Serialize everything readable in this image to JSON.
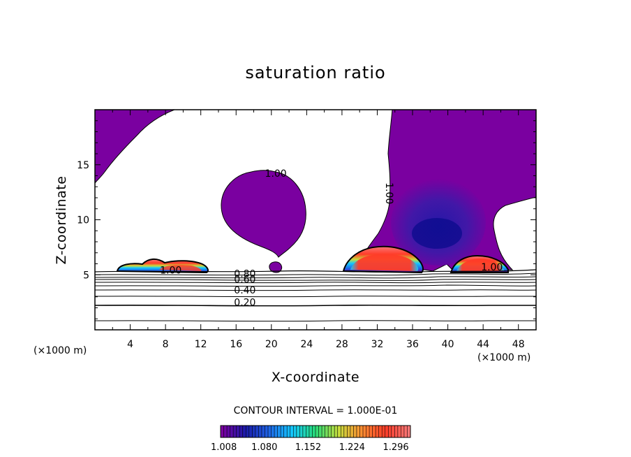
{
  "chart_data": {
    "type": "contour",
    "title": "saturation ratio",
    "xlabel": "X-coordinate",
    "ylabel": "Z-coordinate",
    "x_unit": "(×1000 m)",
    "y_unit": "(×1000 m)",
    "xlim": [
      0,
      50
    ],
    "ylim": [
      0,
      20
    ],
    "x_ticks": [
      4,
      8,
      12,
      16,
      20,
      24,
      28,
      32,
      36,
      40,
      44,
      48
    ],
    "y_ticks": [
      5,
      10,
      15
    ],
    "contour_interval_text": "CONTOUR INTERVAL = 1.000E-01",
    "contour_levels": [
      0.1,
      0.2,
      0.3,
      0.4,
      0.5,
      0.6,
      0.7,
      0.8,
      0.9,
      1.0
    ],
    "contour_labels": [
      {
        "text": "1.00",
        "x": 20.5,
        "z": 13.9
      },
      {
        "text": "1.00",
        "x": 33.0,
        "z": 12.4
      },
      {
        "text": "1.00",
        "x": 8.6,
        "z": 5.1
      },
      {
        "text": "1.00",
        "x": 45.0,
        "z": 5.4
      },
      {
        "text": "0.80",
        "x": 17.0,
        "z": 4.8
      },
      {
        "text": "0.60",
        "x": 17.0,
        "z": 4.3
      },
      {
        "text": "0.40",
        "x": 17.0,
        "z": 3.3
      },
      {
        "text": "0.20",
        "x": 17.0,
        "z": 2.2
      }
    ],
    "colorbar": {
      "min": 1.008,
      "max": 1.32,
      "tick_values": [
        1.008,
        1.08,
        1.152,
        1.224,
        1.296
      ],
      "tick_labels": [
        "1.008",
        "1.080",
        "1.152",
        "1.224",
        "1.296"
      ],
      "colors": [
        "#7a00a0",
        "#1a1aa8",
        "#1e64e6",
        "#14c8ff",
        "#28dc78",
        "#c8dc3c",
        "#ff8c32",
        "#ff3c28",
        "#fa7878"
      ]
    }
  }
}
